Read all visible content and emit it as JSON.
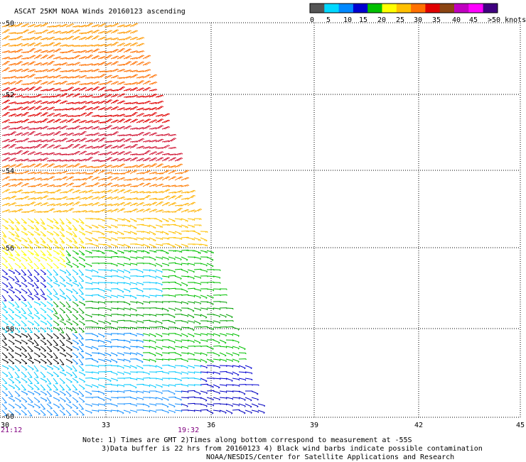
{
  "title": "ASCAT 25KM NOAA Winds 20160123 ascending",
  "legend": {
    "labels": [
      "0",
      "5",
      "10",
      "15",
      "20",
      "25",
      "30",
      "35",
      "40",
      "45",
      ">50 knots"
    ],
    "colors": [
      "#555555",
      "#00d8ff",
      "#0088ff",
      "#0000d0",
      "#00c000",
      "#ffff00",
      "#ffc000",
      "#ff7000",
      "#e00000",
      "#8b4513",
      "#c000c0",
      "#ff00ff",
      "#400080"
    ]
  },
  "axes": {
    "lat_labels": [
      "-50",
      "-52",
      "-54",
      "-56",
      "-58",
      "-60"
    ],
    "lon_labels": [
      "30",
      "33",
      "36",
      "39",
      "42",
      "45"
    ]
  },
  "times": {
    "left": "21:12",
    "center": "19:32"
  },
  "notes": {
    "line1": "Note: 1) Times are GMT 2)Times along bottom correspond to measurement at -55S",
    "line2": "3)Data buffer is 22 hrs from 20160123 4) Black wind barbs indicate possible contamination",
    "line3": "NOAA/NESDIS/Center for Satellite Applications and Research"
  }
}
